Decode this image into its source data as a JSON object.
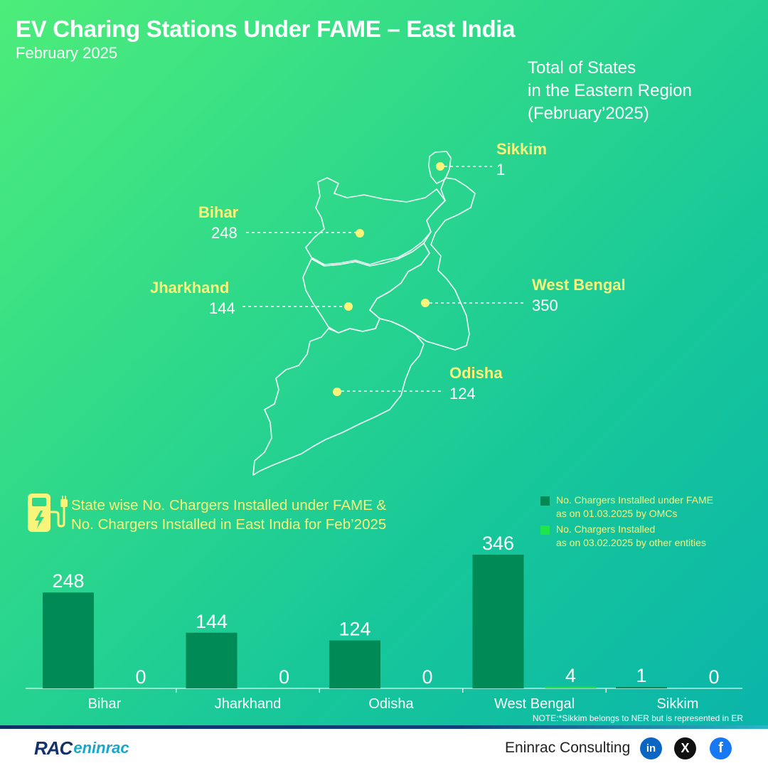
{
  "header": {
    "title": "EV Charing Stations Under FAME – East India",
    "subtitle": "February 2025"
  },
  "map": {
    "heading_lines": [
      "Total of States",
      "in the Eastern Region",
      "(February’2025)"
    ],
    "states": [
      {
        "name": "Sikkim",
        "value": "1"
      },
      {
        "name": "Bihar",
        "value": "248"
      },
      {
        "name": "Jharkhand",
        "value": "144"
      },
      {
        "name": "West Bengal",
        "value": "350"
      },
      {
        "name": "Odisha",
        "value": "124"
      }
    ],
    "colors": {
      "dot": "#f8f57a",
      "state_label": "#f8f57a",
      "outline": "#ffffff"
    }
  },
  "section": {
    "title_lines": [
      "State wise No. Chargers Installed under FAME &",
      "No. Chargers Installed in East India for Feb’2025"
    ],
    "icon": "ev-charger-icon"
  },
  "legend": {
    "items": [
      {
        "lines": [
          "No. Chargers Installed under FAME",
          "as on 01.03.2025 by OMCs"
        ],
        "color": "#008a55"
      },
      {
        "lines": [
          "No. Chargers Installed",
          "as on 03.02.2025 by other entities"
        ],
        "color": "#1ee64a"
      }
    ]
  },
  "chart_data": {
    "type": "bar",
    "categories": [
      "Bihar",
      "Jharkhand",
      "Odisha",
      "West Bengal",
      "Sikkim"
    ],
    "series": [
      {
        "name": "No. Chargers Installed under FAME as on 01.03.2025 by OMCs",
        "values": [
          248,
          144,
          124,
          346,
          1
        ],
        "color": "#008a55"
      },
      {
        "name": "No. Chargers Installed as on 03.02.2025 by other entities",
        "values": [
          0,
          0,
          0,
          4,
          0
        ],
        "color": "#1ee64a"
      }
    ],
    "ylim": [
      0,
      346
    ],
    "grid": false,
    "legend_position": "top-right"
  },
  "note": "NOTE:*Sikkim belongs to NER but is represented in ER",
  "footer": {
    "logo_rac": "RAC",
    "logo_text": "eninrac",
    "company": "Eninrac Consulting",
    "social": [
      {
        "name": "linkedin-icon",
        "glyph": "in"
      },
      {
        "name": "x-icon",
        "glyph": "X"
      },
      {
        "name": "facebook-icon",
        "glyph": "f"
      }
    ]
  }
}
